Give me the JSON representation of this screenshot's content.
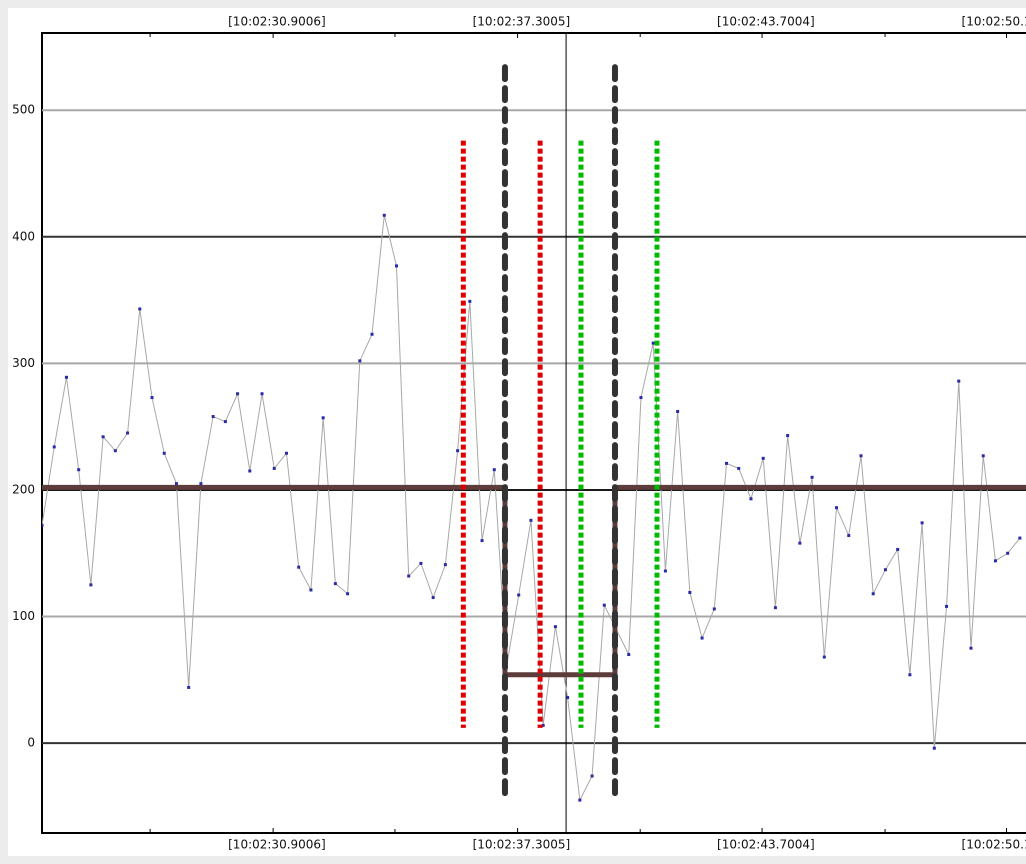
{
  "chart_data": {
    "type": "line",
    "xlim": [
      24.85,
      50.61
    ],
    "ylim": [
      -71,
      561
    ],
    "xticks": [
      {
        "value": 30.9006,
        "label": "[10:02:30.9006]"
      },
      {
        "value": 37.3005,
        "label": "[10:02:37.3005]"
      },
      {
        "value": 43.7004,
        "label": "[10:02:43.7004]"
      },
      {
        "value": 50.1003,
        "label": "[10:02:50.1"
      }
    ],
    "xminorticks": [
      27.68,
      34.09,
      40.51,
      46.92
    ],
    "yticks": [
      0,
      100,
      200,
      300,
      400,
      500
    ],
    "grid": true,
    "grid_colors": [
      "#333333",
      "#a8a8a8"
    ],
    "series": [
      {
        "color": "#a8a8a8",
        "marker_color": "#2a2aa8",
        "x": [
          24.85,
          25.17,
          25.49,
          25.81,
          26.13,
          26.45,
          26.77,
          27.09,
          27.41,
          27.73,
          28.05,
          28.37,
          28.69,
          29.01,
          29.33,
          29.65,
          29.97,
          30.29,
          30.61,
          30.93,
          31.25,
          31.57,
          31.89,
          32.21,
          32.53,
          32.85,
          33.17,
          33.49,
          33.81,
          34.13,
          34.45,
          34.77,
          35.09,
          35.41,
          35.73,
          36.05,
          36.37,
          36.69,
          37.01,
          37.33,
          37.65,
          37.97,
          38.29,
          38.61,
          38.93,
          39.25,
          39.57,
          40.21,
          40.53,
          40.85,
          41.17,
          41.49,
          41.81,
          42.13,
          42.45,
          42.77,
          43.09,
          43.41,
          43.73,
          44.05,
          44.37,
          44.69,
          45.01,
          45.33,
          45.65,
          45.97,
          46.29,
          46.61,
          46.93,
          47.25,
          47.57,
          47.89,
          48.21,
          48.53,
          48.85,
          49.17,
          49.49,
          49.81,
          50.13,
          50.45
        ],
        "values": [
          172,
          234,
          289,
          216,
          125,
          242,
          231,
          245,
          343,
          273,
          229,
          205,
          44,
          205,
          258,
          254,
          276,
          215,
          276,
          217,
          229,
          139,
          121,
          257,
          126,
          118,
          302,
          323,
          417,
          377,
          132,
          142,
          115,
          141,
          231,
          349,
          160,
          216,
          60,
          117,
          176,
          14,
          92,
          36,
          -45,
          -26,
          109,
          70,
          273,
          316,
          136,
          262,
          119,
          83,
          106,
          221,
          217,
          193,
          225,
          107,
          243,
          158,
          210,
          68,
          186,
          164,
          227,
          118,
          137,
          153,
          54,
          174,
          -4,
          108,
          286,
          75,
          227,
          144,
          150,
          162
        ]
      }
    ],
    "threshold": {
      "color": "#5e3c3c",
      "x": [
        24.85,
        36.97,
        36.97,
        39.85,
        39.85,
        50.61
      ],
      "values": [
        202,
        202,
        54,
        54,
        202,
        202
      ]
    },
    "markers": [
      {
        "x": 35.88,
        "ymin": 12,
        "ymax": 476,
        "color": "#dd0000"
      },
      {
        "x": 37.89,
        "ymin": 12,
        "ymax": 476,
        "color": "#dd0000"
      },
      {
        "x": 38.96,
        "ymin": 12,
        "ymax": 476,
        "color": "#00bb00"
      },
      {
        "x": 40.95,
        "ymin": 12,
        "ymax": 476,
        "color": "#00bb00"
      },
      {
        "x": 36.97,
        "ymin": -45,
        "ymax": 534,
        "color": "#333333"
      },
      {
        "x": 39.85,
        "ymin": -45,
        "ymax": 534,
        "color": "#333333"
      }
    ],
    "cursor": {
      "x": 38.57,
      "y": 200
    }
  }
}
